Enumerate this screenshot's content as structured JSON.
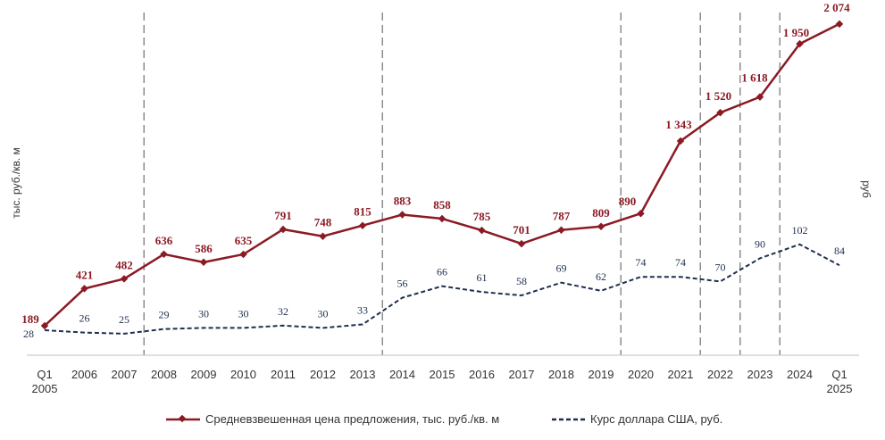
{
  "chart_data": {
    "type": "line",
    "title": "",
    "ylabel_left": "тыс. руб./кв. м",
    "ylabel_right": "руб",
    "categories": [
      "Q1\n2005",
      "2006",
      "2007",
      "2008",
      "2009",
      "2010",
      "2011",
      "2012",
      "2013",
      "2014",
      "2015",
      "2016",
      "2017",
      "2018",
      "2019",
      "2020",
      "2021",
      "2022",
      "2023",
      "2024",
      "Q1\n2025"
    ],
    "series": [
      {
        "name": "Средневзвешенная цена предложения, тыс. руб./кв. м",
        "values": [
          189,
          421,
          482,
          636,
          586,
          635,
          791,
          748,
          815,
          883,
          858,
          785,
          701,
          787,
          809,
          890,
          1343,
          1520,
          1618,
          1950,
          2074
        ],
        "labels": [
          "189",
          "421",
          "482",
          "636",
          "586",
          "635",
          "791",
          "748",
          "815",
          "883",
          "858",
          "785",
          "701",
          "787",
          "809",
          "890",
          "1 343",
          "1 520",
          "1 618",
          "1 950",
          "2 074"
        ],
        "color": "#8b1a24",
        "style": "solid-with-diamond-markers",
        "axis": "left"
      },
      {
        "name": "Курс доллара США, руб.",
        "values": [
          28,
          26,
          25,
          29,
          30,
          30,
          32,
          30,
          33,
          56,
          66,
          61,
          58,
          69,
          62,
          74,
          74,
          70,
          90,
          102,
          84
        ],
        "labels": [
          "28",
          "26",
          "25",
          "29",
          "30",
          "30",
          "32",
          "30",
          "33",
          "56",
          "66",
          "61",
          "58",
          "69",
          "62",
          "74",
          "74",
          "70",
          "90",
          "102",
          "84"
        ],
        "color": "#1f2f4f",
        "style": "dashed",
        "axis": "right"
      }
    ],
    "vertical_dividers_between": [
      [
        "2007",
        "2008"
      ],
      [
        "2013",
        "2014"
      ],
      [
        "2019",
        "2020"
      ],
      [
        "2021",
        "2022"
      ],
      [
        "2022",
        "2023"
      ],
      [
        "2023",
        "2024"
      ]
    ],
    "legend_position": "bottom",
    "grid": false
  }
}
